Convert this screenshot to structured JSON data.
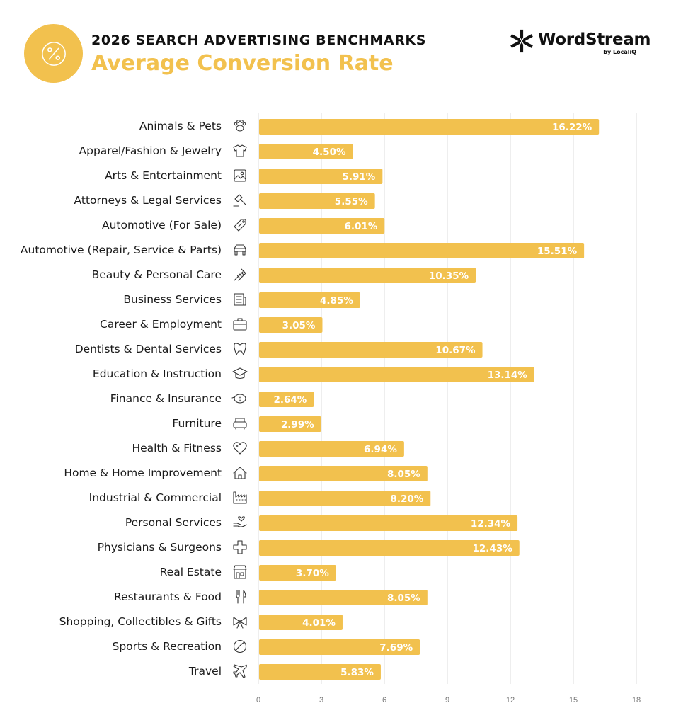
{
  "header": {
    "supertitle": "2026 SEARCH ADVERTISING BENCHMARKS",
    "title": "Average Conversion Rate"
  },
  "logo": {
    "name": "WordStream",
    "byline": "by LocaliQ"
  },
  "colors": {
    "accent": "#f2c14e",
    "bar": "#f2c14e",
    "grid": "#dddddd",
    "text": "#1a1a1a",
    "icon": "#333333"
  },
  "chart_data": {
    "type": "bar",
    "orientation": "horizontal",
    "title": "Average Conversion Rate",
    "xlim": [
      0,
      18
    ],
    "xticks": [
      0,
      3,
      6,
      9,
      12,
      15,
      18
    ],
    "grid": true,
    "categories": [
      "Animals & Pets",
      "Apparel/Fashion & Jewelry",
      "Arts & Entertainment",
      "Attorneys & Legal Services",
      "Automotive (For Sale)",
      "Automotive (Repair, Service & Parts)",
      "Beauty & Personal Care",
      "Business Services",
      "Career & Employment",
      "Dentists & Dental Services",
      "Education & Instruction",
      "Finance & Insurance",
      "Furniture",
      "Health & Fitness",
      "Home & Home Improvement",
      "Industrial & Commercial",
      "Personal Services",
      "Physicians & Surgeons",
      "Real Estate",
      "Restaurants & Food",
      "Shopping, Collectibles & Gifts",
      "Sports & Recreation",
      "Travel"
    ],
    "values": [
      16.22,
      4.5,
      5.91,
      5.55,
      6.01,
      15.51,
      10.35,
      4.85,
      3.05,
      10.67,
      13.14,
      2.64,
      2.99,
      6.94,
      8.05,
      8.2,
      12.34,
      12.43,
      3.7,
      8.05,
      4.01,
      7.69,
      5.83
    ],
    "labels": [
      "16.22%",
      "4.50%",
      "5.91%",
      "5.55%",
      "6.01%",
      "15.51%",
      "10.35%",
      "4.85%",
      "3.05%",
      "10.67%",
      "13.14%",
      "2.64%",
      "2.99%",
      "6.94%",
      "8.05%",
      "8.20%",
      "12.34%",
      "12.43%",
      "3.70%",
      "8.05%",
      "4.01%",
      "7.69%",
      "5.83%"
    ],
    "icons": [
      "paw-icon",
      "shirt-icon",
      "picture-icon",
      "gavel-icon",
      "price-tag-icon",
      "car-icon",
      "comb-icon",
      "newspaper-icon",
      "briefcase-icon",
      "tooth-icon",
      "graduation-cap-icon",
      "piggy-bank-icon",
      "armchair-icon",
      "heart-icon",
      "house-icon",
      "factory-icon",
      "hand-heart-icon",
      "medical-cross-icon",
      "storefront-icon",
      "fork-knife-icon",
      "gift-bow-icon",
      "ball-icon",
      "airplane-icon"
    ]
  }
}
